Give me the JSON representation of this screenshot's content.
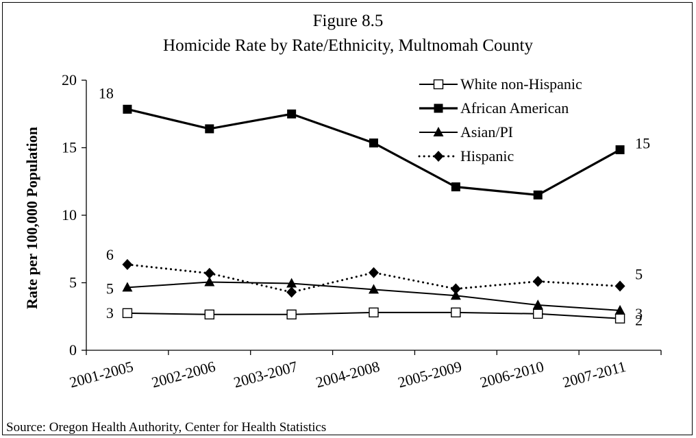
{
  "chart_data": {
    "type": "line",
    "title": "Figure 8.5",
    "subtitle": "Homicide Rate by Rate/Ethnicity, Multnomah County",
    "xlabel": "",
    "ylabel": "Rate per 100,000 Population",
    "categories": [
      "2001-2005",
      "2002-2006",
      "2003-2007",
      "2004-2008",
      "2005-2009",
      "2006-2010",
      "2007-2011"
    ],
    "ylim": [
      0,
      20
    ],
    "yticks": [
      "0",
      "5",
      "10",
      "15",
      "20"
    ],
    "grid": false,
    "legend_position": "top-right",
    "source": "Source: Oregon Health Authority, Center for Health Statistics",
    "series": [
      {
        "name": "White non-Hispanic",
        "values": [
          2.75,
          2.65,
          2.65,
          2.8,
          2.8,
          2.7,
          2.35
        ],
        "marker": "square-open",
        "line": "solid",
        "labels": {
          "0": "3",
          "6": "2"
        }
      },
      {
        "name": "African American",
        "values": [
          17.85,
          16.4,
          17.5,
          15.35,
          12.1,
          11.5,
          14.85
        ],
        "marker": "square-filled",
        "line": "thick",
        "labels": {
          "0": "18",
          "6": "15"
        }
      },
      {
        "name": "Asian/PI",
        "values": [
          4.65,
          5.05,
          4.95,
          4.5,
          4.05,
          3.35,
          2.95
        ],
        "marker": "triangle",
        "line": "solid",
        "labels": {
          "0": "5",
          "6": "3"
        }
      },
      {
        "name": "Hispanic",
        "values": [
          6.35,
          5.7,
          4.3,
          5.75,
          4.55,
          5.1,
          4.75
        ],
        "marker": "diamond",
        "line": "dotted",
        "labels": {
          "0": "6",
          "6": "5"
        }
      }
    ]
  }
}
